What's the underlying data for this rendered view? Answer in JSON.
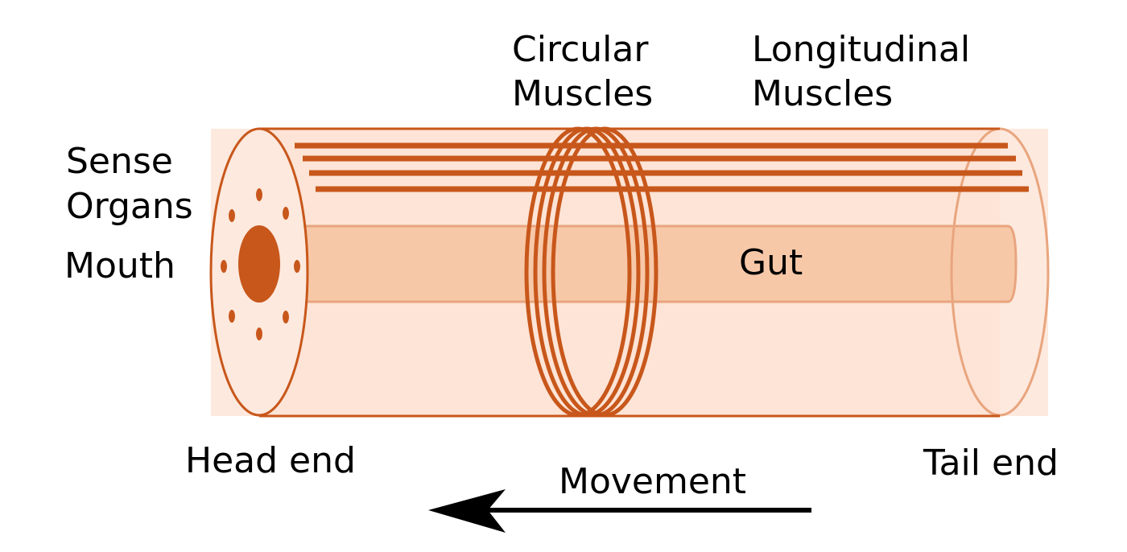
{
  "labels": {
    "circular_line1": "Circular",
    "circular_line2": "Muscles",
    "longitudinal_line1": "Longitudinal",
    "longitudinal_line2": "Muscles",
    "sense_line1": "Sense",
    "sense_line2": "Organs",
    "mouth": "Mouth",
    "gut": "Gut",
    "head_end": "Head end",
    "tail_end": "Tail end",
    "movement": "Movement"
  },
  "colors": {
    "body_fill": "#fde9de",
    "outline": "#c8571b",
    "muscle": "#c8571b",
    "gut_fill": "#f7c8a8",
    "mouth": "#c8571b",
    "text": "#000000",
    "arrow": "#000000"
  },
  "icons": {
    "movement_arrow": "left-arrow-icon"
  }
}
